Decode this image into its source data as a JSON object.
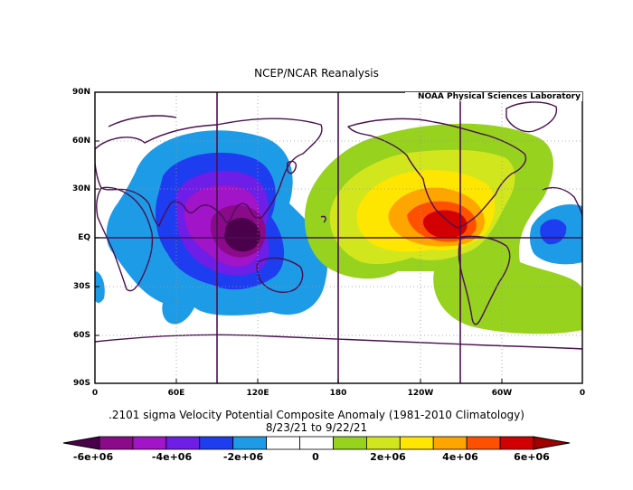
{
  "title": "NCEP/NCAR Reanalysis",
  "credit": "NOAA Physical Sciences Laboratory",
  "subtitle_line1": ".2101 sigma Velocity Potential  Composite Anomaly (1981-2010 Climatology)",
  "subtitle_line2": "8/23/21  to 9/22/21",
  "lat_labels": [
    "90N",
    "60N",
    "30N",
    "EQ",
    "30S",
    "60S",
    "90S"
  ],
  "lon_labels": [
    "0",
    "60E",
    "120E",
    "180",
    "120W",
    "60W",
    "0"
  ],
  "colorbar": {
    "labels": [
      "-6e+06",
      "-4e+06",
      "-2e+06",
      "0",
      "2e+06",
      "4e+06",
      "6e+06"
    ],
    "colors": [
      "#8a0a8a",
      "#a214c8",
      "#6e1ee6",
      "#1e3cf0",
      "#1e9be6",
      "#ffffff",
      "#ffffff",
      "#96d21e",
      "#d2e61e",
      "#ffe600",
      "#ffa500",
      "#ff5000",
      "#d20000"
    ],
    "low_arrow_color": "#4b004b",
    "high_arrow_color": "#a00000"
  },
  "map": {
    "projection": "equirectangular",
    "lon_range": [
      0,
      360
    ],
    "lat_range": [
      -90,
      90
    ],
    "reference_meridians": [
      "90E",
      "180",
      "90W"
    ],
    "reference_parallel": "EQ",
    "land_outline_color": "#4a1050"
  }
}
